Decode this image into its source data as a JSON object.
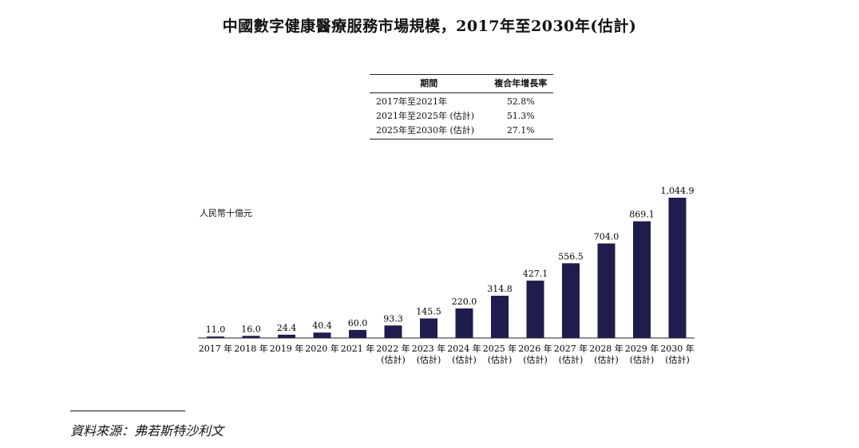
{
  "title": "中國數字健康醫療服務市場規模，2017年至2030年(估計)",
  "cagr_table": {
    "headers": [
      "期間",
      "複合年增長率"
    ],
    "rows": [
      {
        "period": "2017年至2021年",
        "rate": "52.8%"
      },
      {
        "period": "2021年至2025年 (估計)",
        "rate": "51.3%"
      },
      {
        "period": "2025年至2030年 (估計)",
        "rate": "27.1%"
      }
    ]
  },
  "chart_data": {
    "type": "bar",
    "title": "中國數字健康醫療服務市場規模，2017年至2030年(估計)",
    "ylabel": "人民幣十億元",
    "xlabel": "",
    "categories": [
      [
        "2017 年"
      ],
      [
        "2018 年"
      ],
      [
        "2019 年"
      ],
      [
        "2020 年"
      ],
      [
        "2021 年"
      ],
      [
        "2022 年",
        "(估計)"
      ],
      [
        "2023 年",
        "(估計)"
      ],
      [
        "2024 年",
        "(估計)"
      ],
      [
        "2025 年",
        "(估計)"
      ],
      [
        "2026 年",
        "(估計)"
      ],
      [
        "2027 年",
        "(估計)"
      ],
      [
        "2028 年",
        "(估計)"
      ],
      [
        "2029 年",
        "(估計)"
      ],
      [
        "2030 年",
        "(估計)"
      ]
    ],
    "values": [
      11.0,
      16.0,
      24.4,
      40.4,
      60.0,
      93.3,
      145.5,
      220.0,
      314.8,
      427.1,
      556.5,
      704.0,
      869.1,
      1044.9
    ],
    "value_labels": [
      "11.0",
      "16.0",
      "24.4",
      "40.4",
      "60.0",
      "93.3",
      "145.5",
      "220.0",
      "314.8",
      "427.1",
      "556.5",
      "704.0",
      "869.1",
      "1,044.9"
    ],
    "ylim": [
      0,
      1044.9
    ],
    "grid": false,
    "legend": "none",
    "bar_color": "#1f1d4d"
  },
  "footer": "資料來源：弗若斯特沙利文"
}
